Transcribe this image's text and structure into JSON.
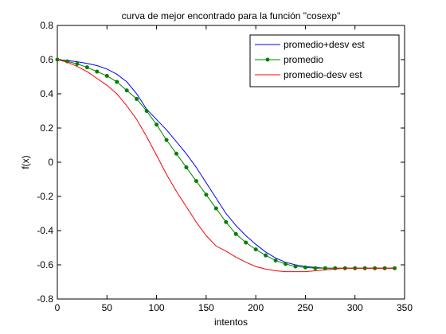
{
  "chart_data": {
    "type": "line",
    "title": "curva de mejor encontrado para la función \"cosexp\"",
    "xlabel": "intentos",
    "ylabel": "f(x)",
    "xlim": [
      0,
      350
    ],
    "ylim": [
      -0.8,
      0.8
    ],
    "xticks": [
      0,
      50,
      100,
      150,
      200,
      250,
      300,
      350
    ],
    "yticks": [
      -0.8,
      -0.6,
      -0.4,
      -0.2,
      0,
      0.2,
      0.4,
      0.6,
      0.8
    ],
    "grid": false,
    "legend_position": "top-right",
    "series": [
      {
        "name": "promedio+desv est",
        "color": "#0000ff",
        "marker": "none",
        "points": [
          [
            0,
            0.6
          ],
          [
            10,
            0.595
          ],
          [
            20,
            0.588
          ],
          [
            30,
            0.578
          ],
          [
            40,
            0.565
          ],
          [
            50,
            0.545
          ],
          [
            60,
            0.515
          ],
          [
            70,
            0.47
          ],
          [
            80,
            0.4
          ],
          [
            90,
            0.31
          ],
          [
            100,
            0.25
          ],
          [
            110,
            0.19
          ],
          [
            120,
            0.12
          ],
          [
            130,
            0.05
          ],
          [
            140,
            -0.03
          ],
          [
            150,
            -0.12
          ],
          [
            160,
            -0.21
          ],
          [
            170,
            -0.3
          ],
          [
            180,
            -0.37
          ],
          [
            190,
            -0.43
          ],
          [
            200,
            -0.48
          ],
          [
            210,
            -0.525
          ],
          [
            220,
            -0.56
          ],
          [
            230,
            -0.585
          ],
          [
            240,
            -0.6
          ],
          [
            250,
            -0.61
          ],
          [
            260,
            -0.615
          ],
          [
            270,
            -0.62
          ],
          [
            280,
            -0.62
          ],
          [
            290,
            -0.62
          ],
          [
            300,
            -0.62
          ],
          [
            310,
            -0.62
          ],
          [
            320,
            -0.62
          ],
          [
            330,
            -0.62
          ],
          [
            340,
            -0.62
          ]
        ]
      },
      {
        "name": "promedio",
        "color": "#008000",
        "marker": "dot",
        "points": [
          [
            0,
            0.6
          ],
          [
            10,
            0.59
          ],
          [
            20,
            0.575
          ],
          [
            30,
            0.555
          ],
          [
            40,
            0.53
          ],
          [
            50,
            0.505
          ],
          [
            60,
            0.47
          ],
          [
            70,
            0.42
          ],
          [
            80,
            0.37
          ],
          [
            90,
            0.3
          ],
          [
            100,
            0.22
          ],
          [
            110,
            0.13
          ],
          [
            120,
            0.05
          ],
          [
            130,
            -0.03
          ],
          [
            140,
            -0.11
          ],
          [
            150,
            -0.19
          ],
          [
            160,
            -0.27
          ],
          [
            170,
            -0.35
          ],
          [
            180,
            -0.42
          ],
          [
            190,
            -0.47
          ],
          [
            200,
            -0.51
          ],
          [
            210,
            -0.545
          ],
          [
            220,
            -0.575
          ],
          [
            230,
            -0.595
          ],
          [
            240,
            -0.61
          ],
          [
            250,
            -0.615
          ],
          [
            260,
            -0.62
          ],
          [
            270,
            -0.62
          ],
          [
            280,
            -0.62
          ],
          [
            290,
            -0.62
          ],
          [
            300,
            -0.62
          ],
          [
            310,
            -0.62
          ],
          [
            320,
            -0.62
          ],
          [
            330,
            -0.62
          ],
          [
            340,
            -0.62
          ]
        ]
      },
      {
        "name": "promedio-desv est",
        "color": "#ff0000",
        "marker": "none",
        "points": [
          [
            0,
            0.6
          ],
          [
            10,
            0.585
          ],
          [
            20,
            0.56
          ],
          [
            30,
            0.53
          ],
          [
            40,
            0.49
          ],
          [
            50,
            0.45
          ],
          [
            60,
            0.4
          ],
          [
            70,
            0.33
          ],
          [
            80,
            0.25
          ],
          [
            90,
            0.15
          ],
          [
            100,
            0.04
          ],
          [
            110,
            -0.07
          ],
          [
            120,
            -0.17
          ],
          [
            130,
            -0.26
          ],
          [
            140,
            -0.35
          ],
          [
            150,
            -0.43
          ],
          [
            160,
            -0.49
          ],
          [
            170,
            -0.52
          ],
          [
            180,
            -0.555
          ],
          [
            190,
            -0.585
          ],
          [
            200,
            -0.61
          ],
          [
            210,
            -0.625
          ],
          [
            220,
            -0.635
          ],
          [
            230,
            -0.64
          ],
          [
            240,
            -0.64
          ],
          [
            250,
            -0.64
          ],
          [
            260,
            -0.635
          ],
          [
            270,
            -0.63
          ],
          [
            280,
            -0.625
          ],
          [
            290,
            -0.62
          ],
          [
            300,
            -0.62
          ],
          [
            310,
            -0.62
          ],
          [
            320,
            -0.62
          ],
          [
            330,
            -0.62
          ],
          [
            340,
            -0.62
          ]
        ]
      }
    ]
  }
}
